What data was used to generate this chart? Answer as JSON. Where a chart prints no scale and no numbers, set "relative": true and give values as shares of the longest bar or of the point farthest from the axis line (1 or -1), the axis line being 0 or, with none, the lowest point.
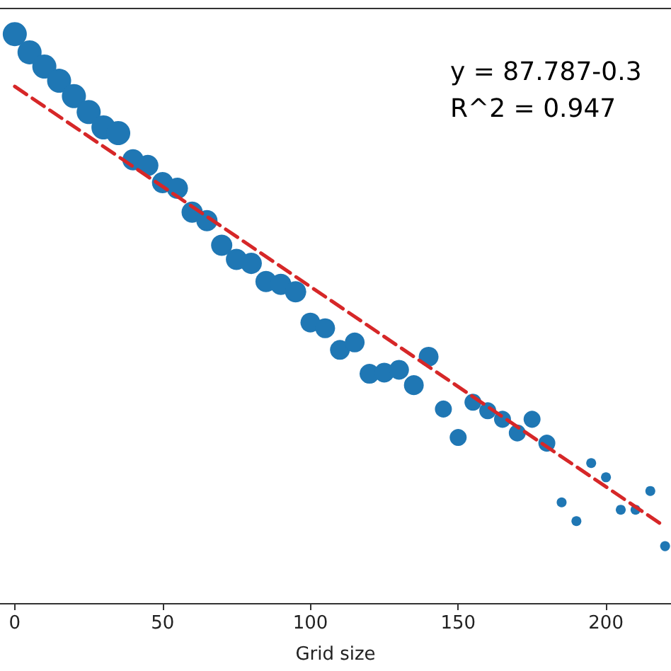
{
  "chart_data": {
    "type": "bubble",
    "xlabel": "Grid size",
    "relative": true,
    "xlim": [
      -5,
      222
    ],
    "xticks": [
      0,
      50,
      100,
      150,
      200
    ],
    "grid": false,
    "annotations": [
      "y = 87.787-0.3",
      "R^2 = 0.947"
    ],
    "series": [
      {
        "color": "#1f77b4",
        "marker": "circle",
        "x": [
          0,
          5,
          10,
          15,
          20,
          25,
          30,
          35,
          40,
          45,
          50,
          55,
          60,
          65,
          70,
          75,
          80,
          85,
          90,
          95,
          100,
          105,
          110,
          115,
          120,
          125,
          130,
          135,
          140,
          145,
          150,
          155,
          160,
          165,
          170,
          175,
          180,
          185,
          190,
          195,
          200,
          205,
          210,
          215,
          220
        ],
        "values": [
          1.0,
          0.968,
          0.943,
          0.918,
          0.891,
          0.863,
          0.836,
          0.826,
          0.779,
          0.769,
          0.739,
          0.729,
          0.687,
          0.672,
          0.629,
          0.604,
          0.597,
          0.565,
          0.56,
          0.547,
          0.493,
          0.483,
          0.445,
          0.458,
          0.403,
          0.405,
          0.41,
          0.383,
          0.433,
          0.341,
          0.291,
          0.353,
          0.338,
          0.323,
          0.299,
          0.323,
          0.281,
          0.177,
          0.144,
          0.246,
          0.221,
          0.164,
          0.164,
          0.197,
          0.1
        ],
        "sizes": [
          1,
          1,
          1,
          1,
          1,
          1,
          1,
          1,
          0.78,
          0.78,
          0.78,
          0.78,
          0.78,
          0.78,
          0.78,
          0.78,
          0.78,
          0.78,
          0.78,
          0.78,
          0.68,
          0.68,
          0.68,
          0.68,
          0.68,
          0.68,
          0.68,
          0.68,
          0.68,
          0.5,
          0.5,
          0.5,
          0.5,
          0.5,
          0.5,
          0.5,
          0.5,
          0.17,
          0.17,
          0.17,
          0.17,
          0.17,
          0.17,
          0.17,
          0.17
        ]
      },
      {
        "type": "line",
        "color": "#d62728",
        "line_style": "dashed",
        "marker": "none",
        "x": [
          0,
          220
        ],
        "values": [
          0.908,
          0.134
        ]
      }
    ]
  }
}
